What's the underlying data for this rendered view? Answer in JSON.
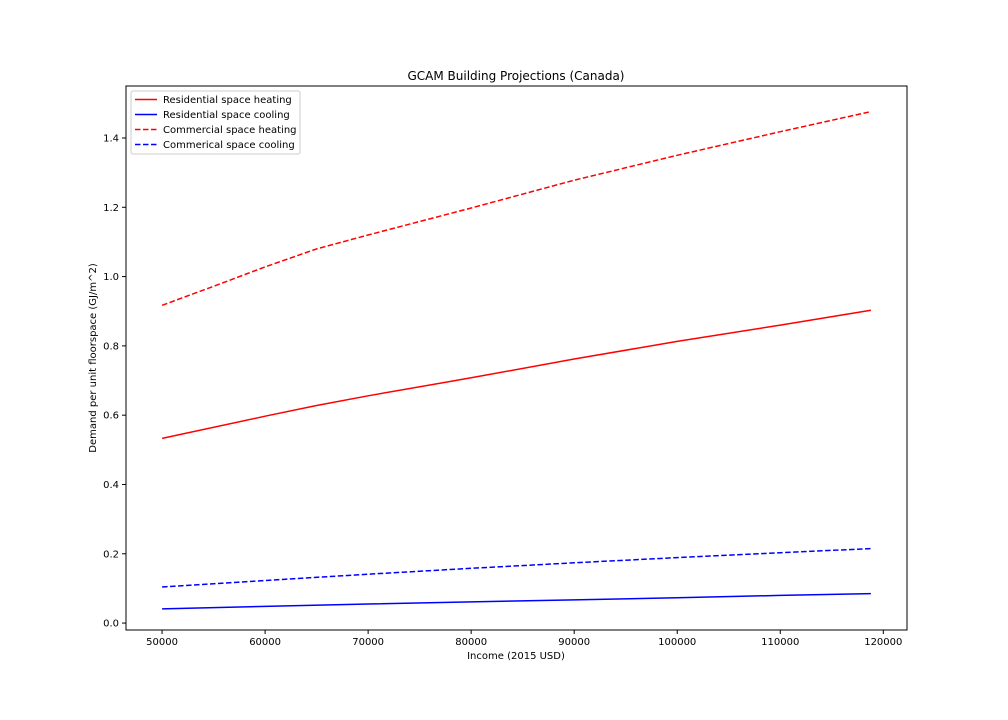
{
  "chart_data": {
    "type": "line",
    "title": "GCAM Building Projections (Canada)",
    "xlabel": "Income (2015 USD)",
    "ylabel": "Demand per unit floorspace (GJ/m^2)",
    "xlim": [
      46500,
      122300
    ],
    "ylim": [
      -0.02,
      1.55
    ],
    "xticks": [
      50000,
      60000,
      70000,
      80000,
      90000,
      100000,
      110000,
      120000
    ],
    "yticks": [
      0.0,
      0.2,
      0.4,
      0.6,
      0.8,
      1.0,
      1.2,
      1.4
    ],
    "ytick_labels": [
      "0.0",
      "0.2",
      "0.4",
      "0.6",
      "0.8",
      "1.0",
      "1.2",
      "1.4"
    ],
    "grid": false,
    "legend_position": "upper-left",
    "series": [
      {
        "name": "Residential space heating",
        "color": "#ff0000",
        "linestyle": "solid",
        "x": [
          50000,
          60000,
          65000,
          70000,
          80000,
          90000,
          100000,
          110000,
          118800
        ],
        "values": [
          0.533,
          0.597,
          0.628,
          0.656,
          0.708,
          0.762,
          0.813,
          0.86,
          0.903
        ]
      },
      {
        "name": "Residential space cooling",
        "color": "#0000ff",
        "linestyle": "solid",
        "x": [
          50000,
          60000,
          70000,
          80000,
          90000,
          100000,
          110000,
          118800
        ],
        "values": [
          0.041,
          0.048,
          0.055,
          0.061,
          0.067,
          0.073,
          0.08,
          0.085
        ]
      },
      {
        "name": "Commercial space heating",
        "color": "#ff0000",
        "linestyle": "dashed",
        "x": [
          50000,
          55000,
          60000,
          65000,
          70000,
          80000,
          90000,
          100000,
          110000,
          118800
        ],
        "values": [
          0.917,
          0.972,
          1.028,
          1.08,
          1.12,
          1.198,
          1.278,
          1.35,
          1.418,
          1.476
        ]
      },
      {
        "name": "Commerical space cooling",
        "color": "#0000ff",
        "linestyle": "dashed",
        "x": [
          50000,
          60000,
          70000,
          80000,
          90000,
          100000,
          110000,
          118800
        ],
        "values": [
          0.104,
          0.123,
          0.141,
          0.158,
          0.174,
          0.189,
          0.203,
          0.215
        ]
      }
    ]
  }
}
